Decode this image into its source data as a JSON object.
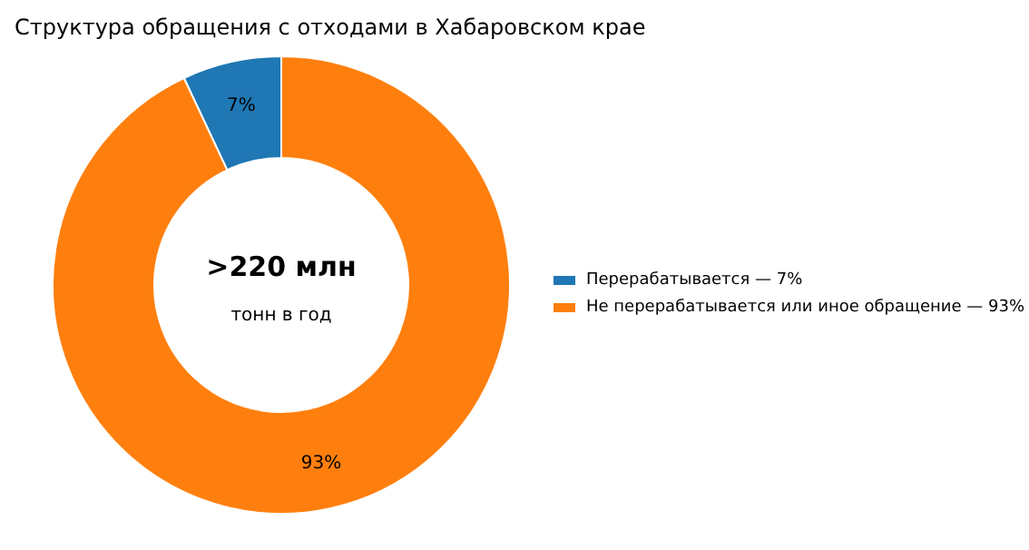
{
  "chart_data": {
    "type": "donut",
    "title": "Структура обращения с отходами в Хабаровском крае",
    "categories": [
      "Перерабатывается — 7%",
      "Не перерабатывается или иное обращение — 93%"
    ],
    "values": [
      7,
      93
    ],
    "colors": [
      "#1f77b4",
      "#ff7f0e"
    ],
    "value_labels": [
      "7%",
      "93%"
    ],
    "annotations": [
      ">220 млн",
      "тонн в год"
    ],
    "legend": "right"
  }
}
